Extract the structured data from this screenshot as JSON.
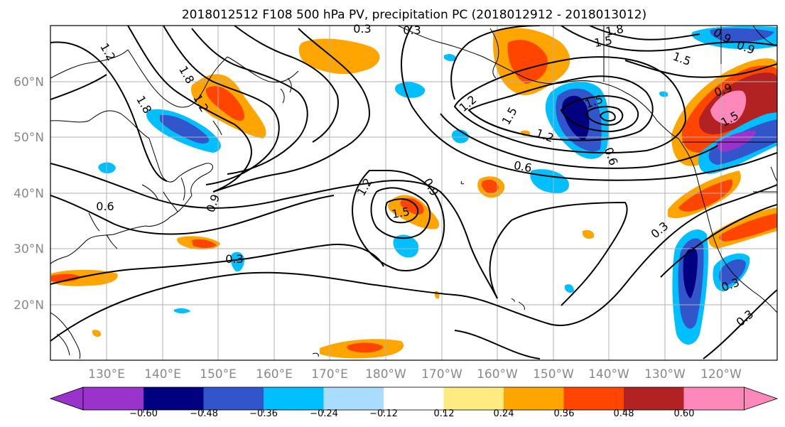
{
  "title": "2018012512 F108 500 hPa PV, precipitation PC (2018012912 - 2018013012)",
  "lat_labels": [
    "60°N",
    "50°N",
    "40°N",
    "30°N",
    "20°N"
  ],
  "lon_labels": [
    "130°E",
    "140°E",
    "150°E",
    "160°E",
    "170°E",
    "180°W",
    "170°W",
    "160°W",
    "150°W",
    "140°W",
    "130°W",
    "120°W"
  ],
  "colorbar": {
    "colors": [
      "#9933cc",
      "#000080",
      "#3355cc",
      "#00bfff",
      "#aadcff",
      "#ffffff",
      "#ffeb80",
      "#ffa500",
      "#ff4500",
      "#b22222",
      "#ff88bb"
    ],
    "tick_labels": [
      "−0.60",
      "−0.48",
      "−0.36",
      "−0.24",
      "−0.12",
      "0.12",
      "0.24",
      "0.36",
      "0.48",
      "0.60"
    ]
  },
  "contour_labels": [
    "1.2",
    "0.3",
    "1.8",
    "1.5",
    "0.9",
    "1.5",
    "1.8",
    "1.5",
    "1.2",
    "0.9",
    "0.6",
    "0.3",
    "0.3",
    "0.6",
    "0.9",
    "1.2",
    "1.5",
    "0.9",
    "1.2",
    "1.5",
    "1.8",
    "1.2",
    "0.6",
    "1.5",
    "0.3",
    "0.3",
    "0.3",
    "0.9"
  ]
}
